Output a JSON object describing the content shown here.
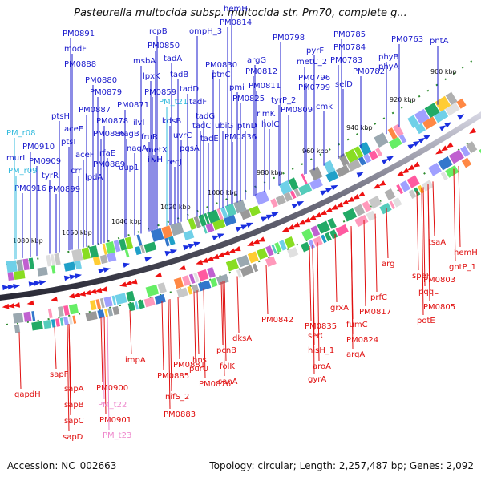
{
  "title": "Pasteurella multocida subsp. multocida str. Pm70, complete g...",
  "footer": {
    "accession": "Accession: NC_002663",
    "topology": "Topology: circular; Length: 2,257,487 bp; Genes: 2,092"
  },
  "colors": {
    "forward_label": "#1a1acc",
    "reverse_label": "#e01010",
    "trna_forward": "#33bbdd",
    "trna_reverse": "#ee88cc",
    "backbone": "#8a8a9a"
  },
  "ruler_labels": [
    "900 kbp",
    "920 kbp",
    "940 kbp",
    "960 kbp",
    "980 kbp",
    "1000 kbp",
    "1020 kbp",
    "1040 kbp",
    "1060 kbp",
    "1080 kbp"
  ],
  "forward_genes": [
    "pntA",
    "PM0763",
    "phyB",
    "phyA",
    "PM0782",
    "PM0783",
    "PM0784",
    "PM0785",
    "PM0798",
    "pyrF",
    "metC_2",
    "PM0796",
    "PM0799",
    "selD",
    "cmk",
    "PM0809",
    "hemH",
    "PM0814",
    "ompH_3",
    "argG",
    "PM0812",
    "PM0811",
    "tyrP_2",
    "rimK",
    "holC",
    "PM0825",
    "ptnD",
    "PM0836",
    "pmi",
    "ptnC",
    "PM0830",
    "rcpB",
    "PM0850",
    "tadA",
    "tadB",
    "tadD",
    "tadF",
    "tadG",
    "tadC",
    "ubiG",
    "tadE",
    "msbA",
    "lpxK",
    "PM0859",
    "kdsB",
    "uvrC",
    "pgsA",
    "recJ",
    "PM0871",
    "ilvI",
    "nagB",
    "fruR",
    "nagA",
    "metX",
    "ilvH",
    "uup1",
    "PM0891",
    "modF",
    "PM0888",
    "PM0880",
    "PM0879",
    "PM0887",
    "PM0878",
    "PM0886",
    "rfaE",
    "PM0889",
    "ptsH",
    "aceE",
    "ptsI",
    "aceF",
    "PM0910",
    "PM0909",
    "crr",
    "lpdA",
    "PM0899",
    "murI",
    "tyrR",
    "PM0916"
  ],
  "forward_trna": [
    "PM_t21",
    "PM_r08",
    "PM_r09"
  ],
  "reverse_genes": [
    "hemH",
    "gntP_1",
    "tsaA",
    "arg",
    "speF",
    "PM0803",
    "pqqL",
    "PM0805",
    "potE",
    "prfC",
    "PM0817",
    "fumC",
    "PM0824",
    "argA",
    "grxA",
    "serC",
    "hisH_1",
    "PM0835",
    "aroA",
    "gyrA",
    "PM0842",
    "dksA",
    "pcnB",
    "folK",
    "sanA",
    "hns",
    "purU",
    "PM0876",
    "PM0881",
    "PM0885",
    "nifS_2",
    "PM0883",
    "impA",
    "PM0900",
    "PM0901",
    "sapF",
    "sapA",
    "sapB",
    "sapC",
    "sapD",
    "gapdH"
  ],
  "reverse_trna": [
    "PM_t22",
    "PM_t23"
  ]
}
